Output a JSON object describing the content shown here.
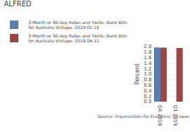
{
  "chart_data": {
    "type": "bar",
    "title": "ALFRED",
    "categories": [
      "Q4 2018",
      "Q1 2019"
    ],
    "series": [
      {
        "name": "3-Month or 90-day Rates and Yields: Bank Bills for Australia Vintage: 2019-01-15",
        "color": "#5b7db1",
        "values": [
          1.97,
          null
        ]
      },
      {
        "name": "3-Month or 90-day Rates and Yields: Bank Bills for Australia Vintage: 2019-04-11",
        "color": "#9b4545",
        "values": [
          1.96,
          1.95
        ]
      }
    ],
    "ylabel": "Percent",
    "ylim": [
      0.0,
      2.0
    ],
    "yticks": [
      {
        "value": 0.0,
        "label": "0.0"
      },
      0.2,
      0.4,
      0.6,
      0.8,
      {
        "value": 1.0,
        "label": "1.0"
      },
      1.2,
      1.4,
      1.6,
      1.8,
      {
        "value": 2.0,
        "label": "2.0"
      }
    ],
    "grid": true,
    "legend": "top",
    "annotations": [
      "Source: Organization for Economic Co-operation and Development"
    ]
  }
}
